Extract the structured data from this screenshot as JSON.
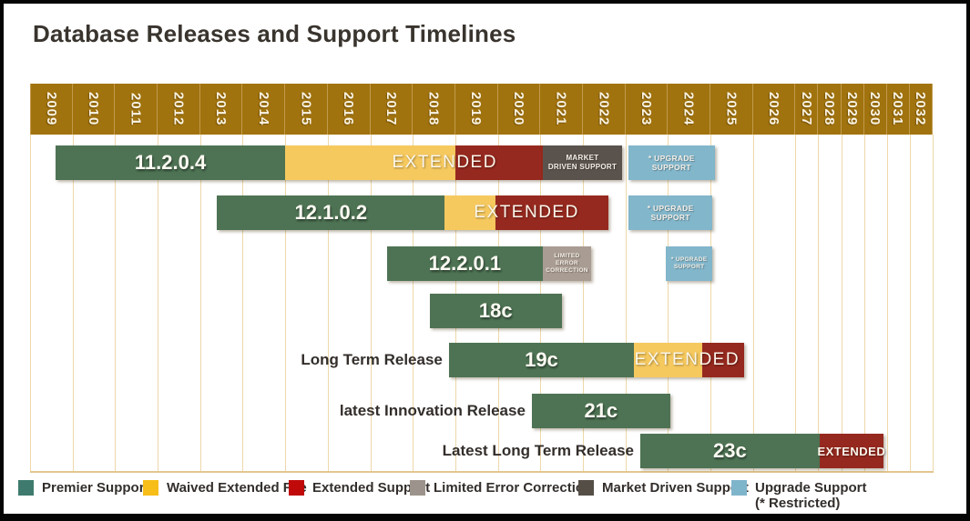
{
  "title": "Database Releases and Support Timelines",
  "chart_data": {
    "type": "gantt-timeline",
    "axis": {
      "years": [
        "2009",
        "2010",
        "2011",
        "2012",
        "2013",
        "2014",
        "2015",
        "2016",
        "2017",
        "2018",
        "2019",
        "2020",
        "2021",
        "2022",
        "2023",
        "2024",
        "2025",
        "2026",
        "2027",
        "2028",
        "2029",
        "2030",
        "2031",
        "2032"
      ],
      "narrow_from": "2027",
      "range": [
        2009,
        2033
      ]
    },
    "colors": {
      "premier": "#4e7354",
      "waived": "#f6c95f",
      "extended": "#96291f",
      "market": "#5a524c",
      "limited": "#a99c92",
      "upgrade": "#82b6cb"
    },
    "rows": [
      {
        "release": "11.2.0.4",
        "label": "",
        "segments": [
          {
            "type": "premier",
            "start": 2009.6,
            "end": 2015.0,
            "version_text": "11.2.0.4"
          },
          {
            "type": "waived",
            "start": 2015.0,
            "end": 2019.0
          },
          {
            "type": "extended",
            "start": 2019.0,
            "end": 2021.05
          },
          {
            "type": "market",
            "start": 2021.05,
            "end": 2022.93,
            "text": "MARKET\nDRIVEN SUPPORT",
            "fs": 8
          },
          {
            "type": "upgrade",
            "start": 2023.07,
            "end": 2025.1,
            "text": "* UPGRADE\nSUPPORT",
            "fs": 8.5
          }
        ],
        "overlay": {
          "text": "EXTENDED",
          "start": 2017.55,
          "end": 2019.95,
          "small": false
        }
      },
      {
        "release": "12.1.0.2",
        "label": "",
        "segments": [
          {
            "type": "premier",
            "start": 2013.4,
            "end": 2018.75,
            "version_text": "12.1.0.2"
          },
          {
            "type": "waived",
            "start": 2018.75,
            "end": 2019.95
          },
          {
            "type": "extended",
            "start": 2019.95,
            "end": 2022.6
          },
          {
            "type": "upgrade",
            "start": 2023.07,
            "end": 2025.05,
            "text": "* UPGRADE\nSUPPORT",
            "fs": 8.5
          }
        ],
        "overlay": {
          "text": "EXTENDED",
          "start": 2019.45,
          "end": 2021.9,
          "small": false
        }
      },
      {
        "release": "12.2.0.1",
        "label": "",
        "segments": [
          {
            "type": "premier",
            "start": 2017.4,
            "end": 2021.05,
            "version_text": "12.2.0.1"
          },
          {
            "type": "limited",
            "start": 2021.05,
            "end": 2022.2,
            "text": "LIMITED ERROR\nCORRECTION",
            "fs": 6.5
          },
          {
            "type": "upgrade",
            "start": 2023.95,
            "end": 2025.05,
            "text": "* UPGRADE\nSUPPORT",
            "fs": 6.5
          }
        ],
        "overlay": null
      },
      {
        "release": "18c",
        "label": "",
        "segments": [
          {
            "type": "premier",
            "start": 2018.4,
            "end": 2021.5,
            "version_text": "18c"
          }
        ],
        "overlay": null
      },
      {
        "release": "19c",
        "label": "Long Term Release",
        "segments": [
          {
            "type": "premier",
            "start": 2018.85,
            "end": 2023.2,
            "version_text": "19c"
          },
          {
            "type": "waived",
            "start": 2023.2,
            "end": 2024.8
          },
          {
            "type": "extended",
            "start": 2024.8,
            "end": 2025.8
          }
        ],
        "overlay": {
          "text": "EXTENDED",
          "start": 2023.45,
          "end": 2025.45,
          "small": false
        }
      },
      {
        "release": "21c",
        "label": "latest Innovation Release",
        "segments": [
          {
            "type": "premier",
            "start": 2020.8,
            "end": 2024.05,
            "version_text": "21c"
          }
        ],
        "overlay": null
      },
      {
        "release": "23c",
        "label": "Latest Long Term Release",
        "segments": [
          {
            "type": "premier",
            "start": 2023.35,
            "end": 2028.05,
            "version_text": "23c"
          },
          {
            "type": "extended",
            "start": 2028.05,
            "end": 2030.85
          }
        ],
        "overlay": {
          "text": "EXTENDED",
          "start": 2028.05,
          "end": 2030.85,
          "small": true
        }
      }
    ]
  },
  "legend": {
    "items": [
      {
        "label": "Premier Support",
        "color": "#3e7b6e"
      },
      {
        "label": "Waived Extended Fee",
        "color": "#f7be19"
      },
      {
        "label": "Extended Support",
        "color": "#c00a0a"
      },
      {
        "label": "Limited Error Correction",
        "color": "#9c948c"
      },
      {
        "label": "Market Driven Support",
        "color": "#554e47"
      },
      {
        "label": "Upgrade Support\n(* Restricted)",
        "color": "#7fb5cb"
      }
    ]
  }
}
